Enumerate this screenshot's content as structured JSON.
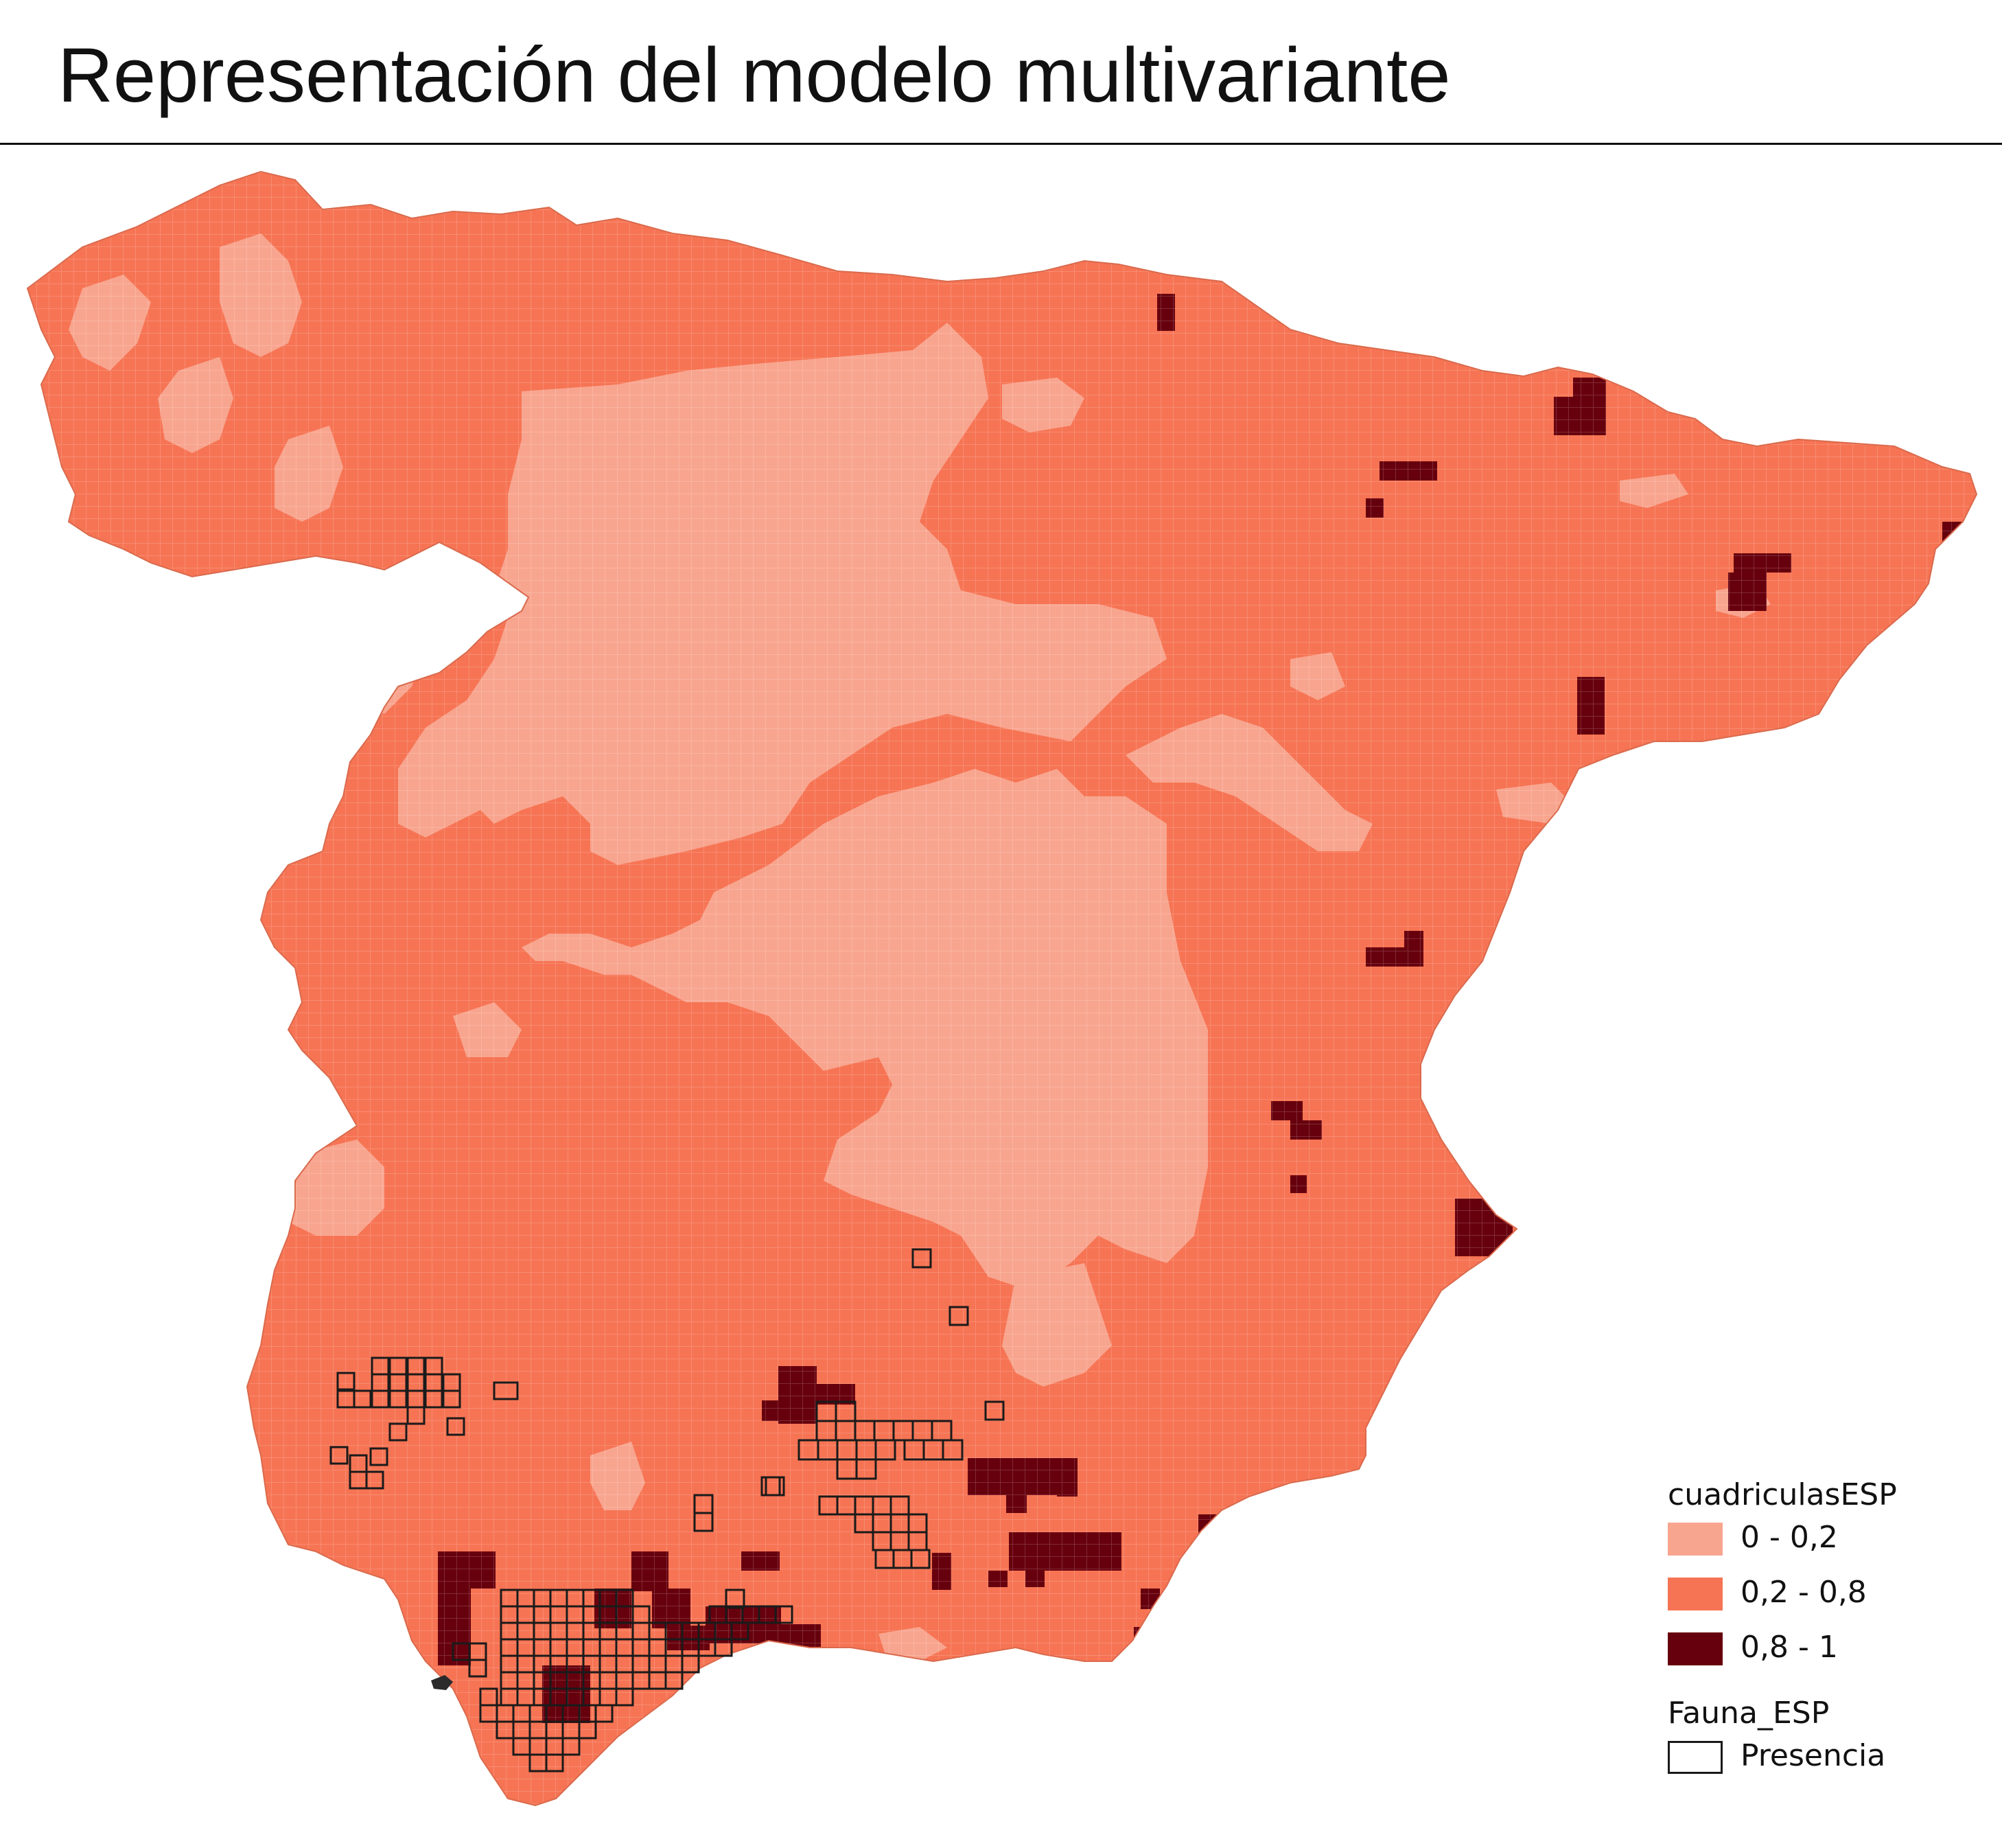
{
  "title": "Representación del modelo multivariante",
  "colors": {
    "class_low": "#f8a58f",
    "class_mid": "#f67454",
    "class_high": "#67000d",
    "presence_stroke": "#1a1a1a",
    "title_rule": "#111111"
  },
  "legend": {
    "layer1_title": "cuadriculasESP",
    "classes": [
      {
        "label": "0 - 0,2",
        "color": "#f8a58f"
      },
      {
        "label": "0,2 - 0,8",
        "color": "#f67454"
      },
      {
        "label": "0,8 - 1",
        "color": "#67000d"
      }
    ],
    "layer2_title": "Fauna_ESP",
    "presence_label": "Presencia"
  }
}
